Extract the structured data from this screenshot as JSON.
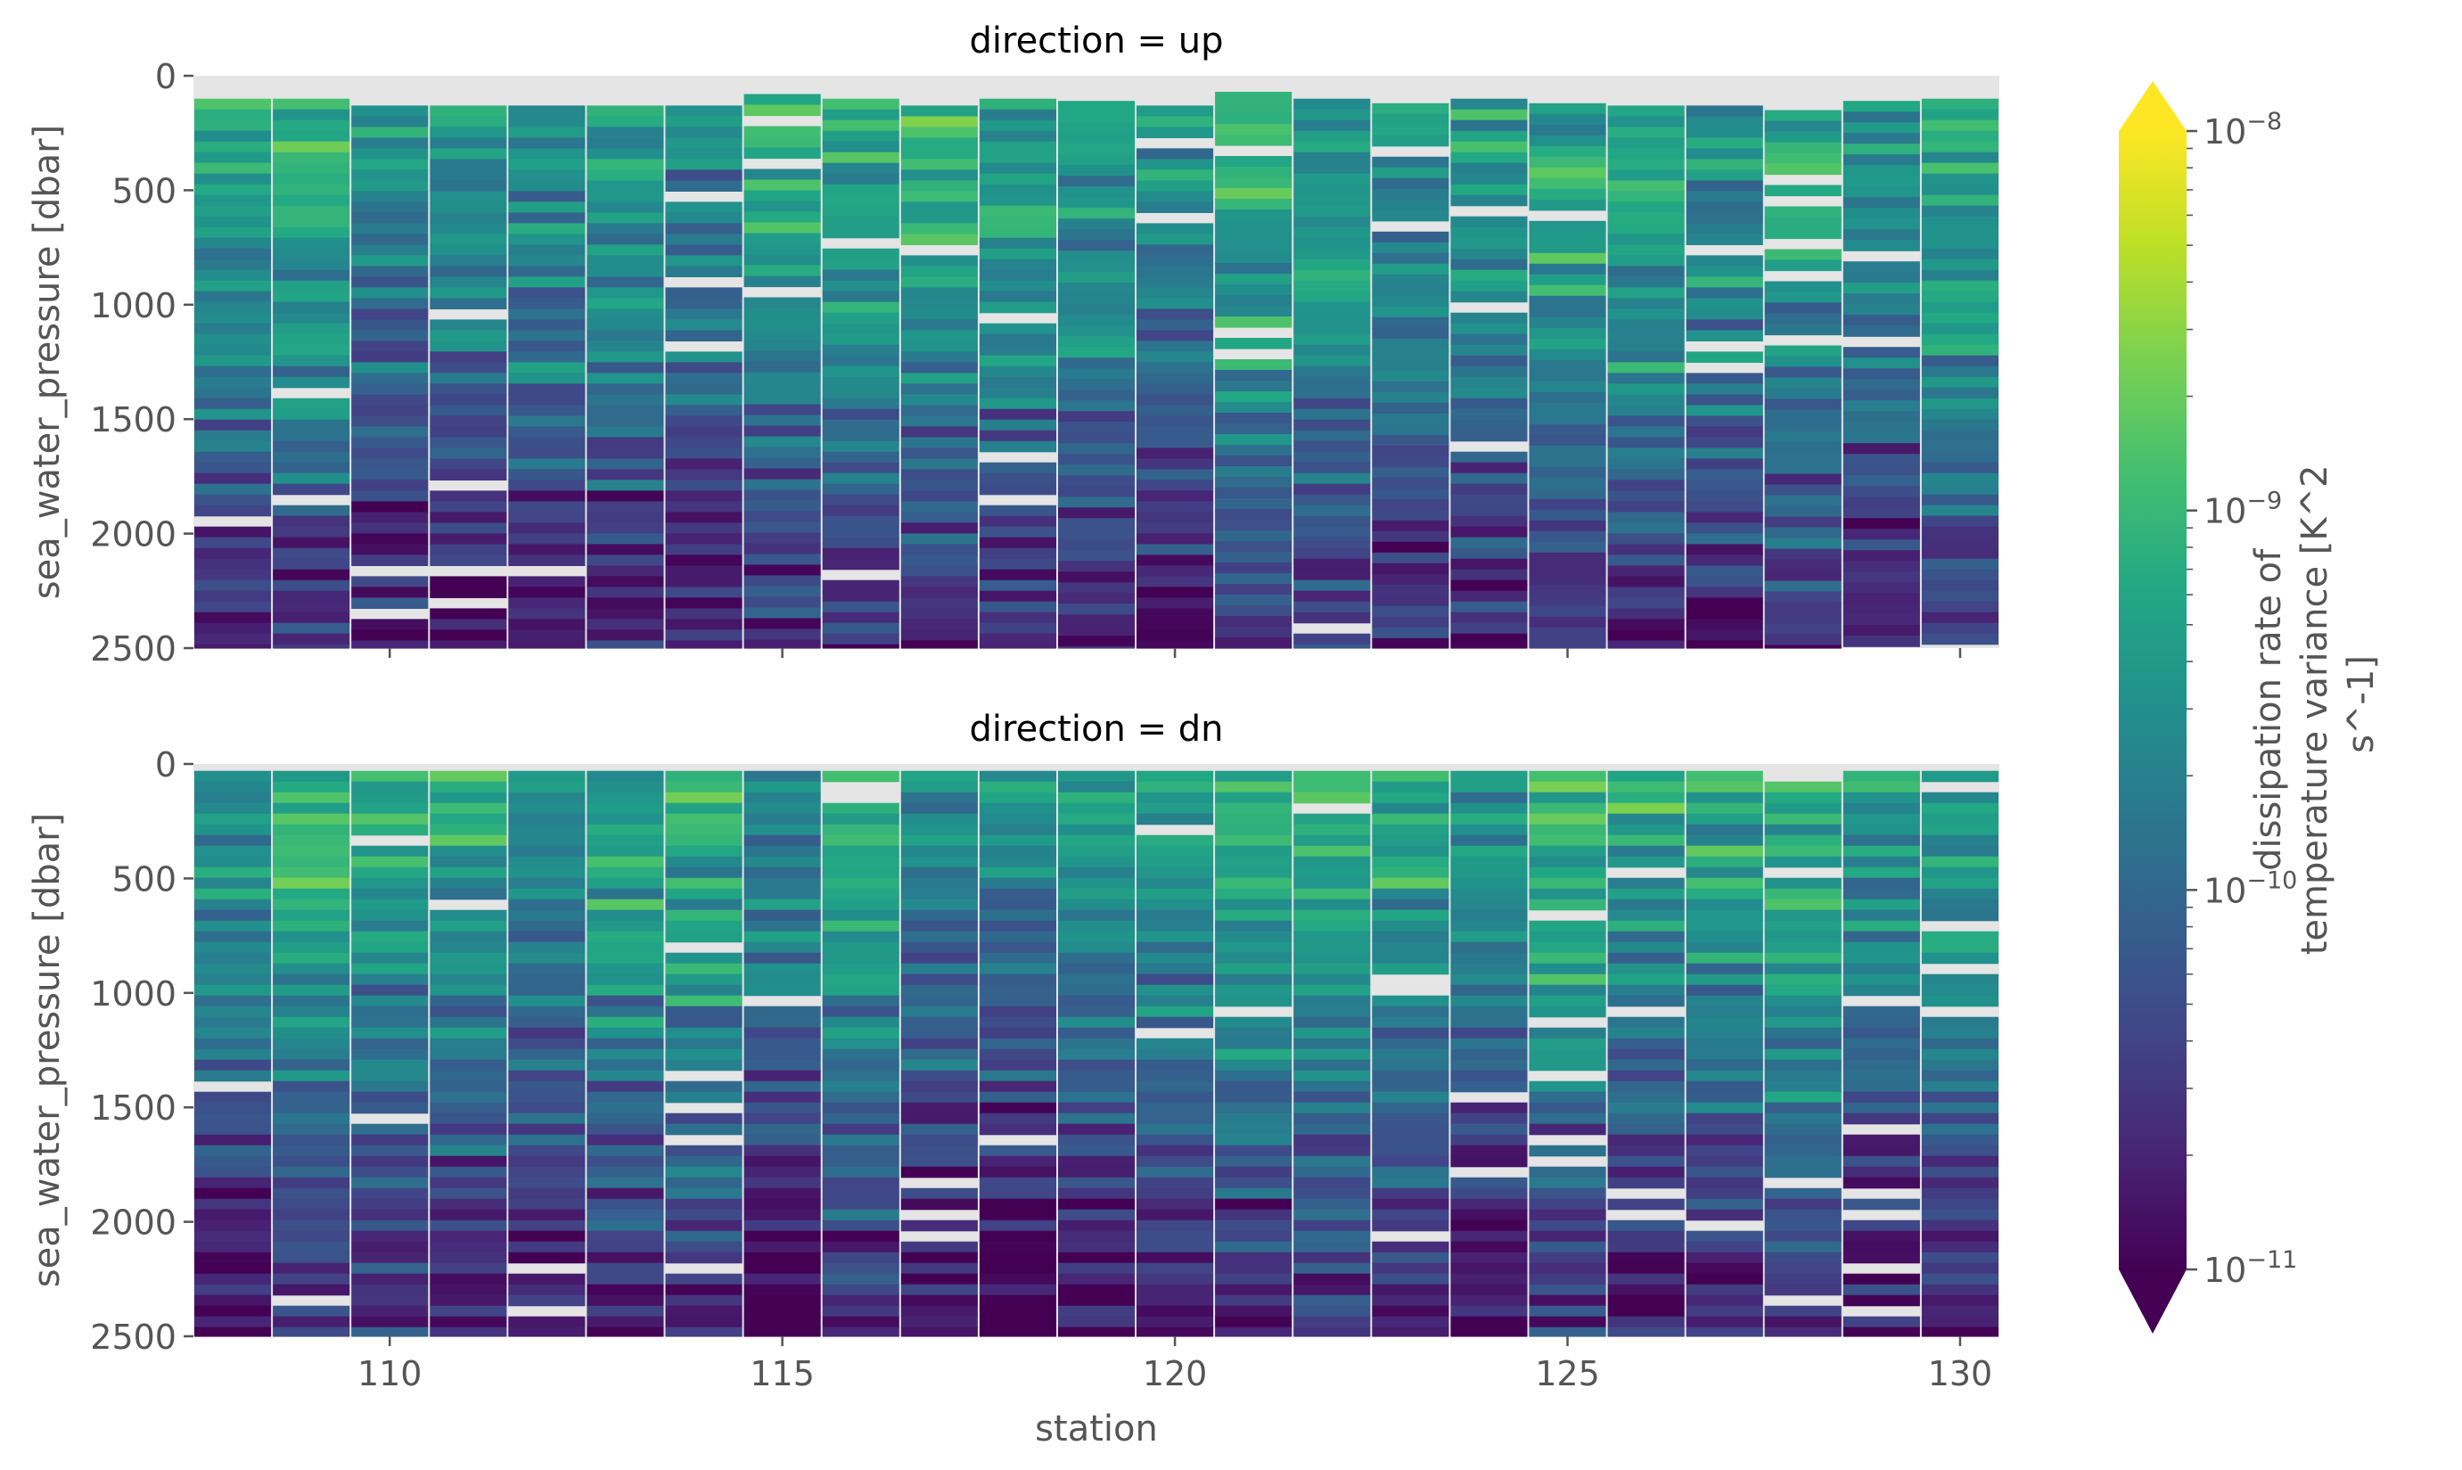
{
  "chart_data": {
    "type": "heatmap",
    "colormap": "viridis",
    "colorscale": "log",
    "x_label": "station",
    "x_ticks": [
      110,
      115,
      120,
      125,
      130
    ],
    "x_range": [
      107.5,
      130.5
    ],
    "stations": [
      108,
      109,
      110,
      111,
      112,
      113,
      114,
      115,
      116,
      117,
      118,
      119,
      120,
      121,
      122,
      123,
      124,
      125,
      126,
      127,
      128,
      129,
      130
    ],
    "y_label": "sea_water_pressure [dbar]",
    "y_ticks": [
      0,
      500,
      1000,
      1500,
      2000,
      2500
    ],
    "y_range": [
      0,
      2500
    ],
    "panels": [
      {
        "title": "direction = up",
        "start_pressure": [
          100,
          100,
          130,
          130,
          130,
          130,
          130,
          80,
          100,
          130,
          100,
          110,
          130,
          70,
          100,
          120,
          100,
          120,
          130,
          130,
          150,
          110,
          100
        ],
        "depth_profile_log10": [
          -9.3,
          -9.5,
          -9.8,
          -10.4,
          -10.8
        ]
      },
      {
        "title": "direction = dn",
        "start_pressure": [
          30,
          30,
          30,
          30,
          30,
          30,
          30,
          30,
          30,
          30,
          30,
          30,
          30,
          30,
          30,
          30,
          30,
          30,
          30,
          30,
          30,
          30,
          30
        ],
        "depth_profile_log10": [
          -9.2,
          -9.5,
          -9.9,
          -10.5,
          -10.8
        ]
      }
    ],
    "colorbar": {
      "label": "dissipation rate of temperature variance [K^2 s^-1]",
      "label_lines": [
        "dissipation rate of",
        "temperature variance [K^2",
        "s^-1]"
      ],
      "tick_bases": [
        "10",
        "10",
        "10",
        "10"
      ],
      "tick_exponents": [
        "−8",
        "−9",
        "−10",
        "−11"
      ],
      "tick_values_log10": [
        -8,
        -9,
        -10,
        -11
      ],
      "range_log10": [
        -11,
        -8
      ],
      "extend": "both"
    }
  },
  "colors": {
    "missing": "#e5e5e5",
    "tick": "#555555",
    "axis_text": "#555555",
    "title_text": "#000000"
  }
}
